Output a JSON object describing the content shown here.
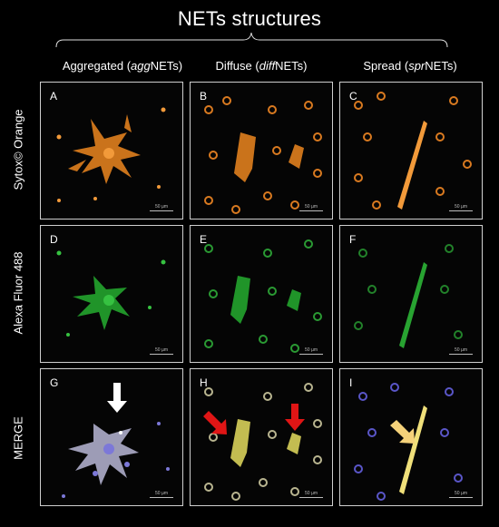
{
  "title": "NETs structures",
  "columns": [
    {
      "prefix": "Aggregated (",
      "italic": "agg",
      "suffix": "NETs)"
    },
    {
      "prefix": "Diffuse (",
      "italic": "diff",
      "suffix": "NETs)"
    },
    {
      "prefix": "Spread (",
      "italic": "spr",
      "suffix": "NETs)"
    }
  ],
  "rows": [
    "Sytox© Orange",
    "Alexa Fluor 488",
    "MERGE"
  ],
  "panels": [
    {
      "label": "A",
      "scale": "50 µm"
    },
    {
      "label": "B",
      "scale": "50 µm"
    },
    {
      "label": "C",
      "scale": "50 µm"
    },
    {
      "label": "D",
      "scale": "50 µm"
    },
    {
      "label": "E",
      "scale": "50 µm"
    },
    {
      "label": "F",
      "scale": "50 µm"
    },
    {
      "label": "G",
      "scale": "50 µm"
    },
    {
      "label": "H",
      "scale": "50 µm"
    },
    {
      "label": "I",
      "scale": "50 µm"
    }
  ],
  "arrows": {
    "white": "#ffffff",
    "red": "#e01515",
    "yellow": "#f5d27a"
  },
  "colors": {
    "sytox_orange": "#f0922a",
    "alexa_green": "#2fbf3a",
    "merge_yellow": "#e8e06a",
    "merge_blue": "#6a6ad8"
  }
}
